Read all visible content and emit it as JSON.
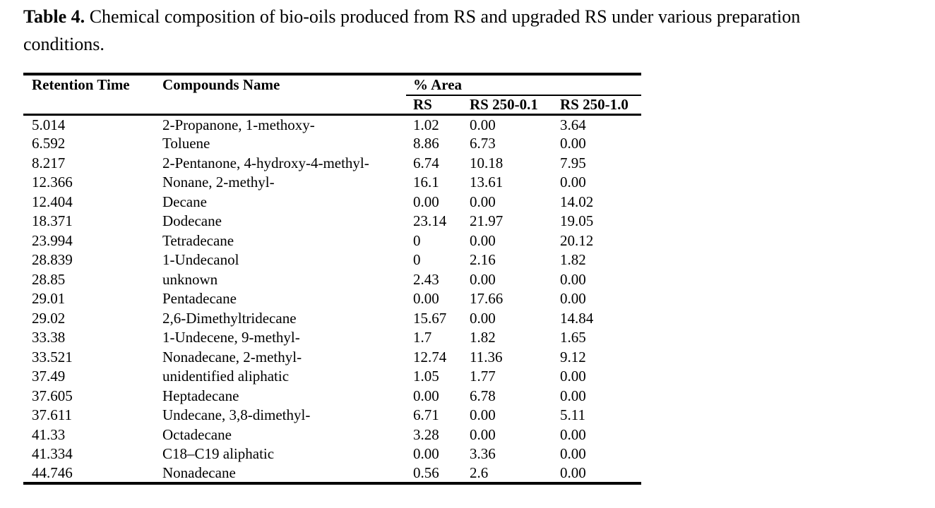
{
  "page": {
    "background_color": "#ffffff",
    "text_color": "#000000"
  },
  "caption": {
    "label": "Table 4.",
    "line1_rest": " Chemical composition of bio-oils produced from RS and upgraded RS under various preparation",
    "line2": "conditions."
  },
  "table": {
    "columns": {
      "retention_time": "Retention Time",
      "compounds_name": "Compounds Name",
      "area_group": "% Area",
      "sub_columns": [
        "RS",
        "RS 250-0.1",
        "RS 250-1.0"
      ]
    },
    "rows": [
      {
        "retention_time": "5.014",
        "compound": "2-Propanone, 1-methoxy-",
        "values": [
          "1.02",
          "0.00",
          "3.64"
        ]
      },
      {
        "retention_time": "6.592",
        "compound": "Toluene",
        "values": [
          "8.86",
          "6.73",
          "0.00"
        ]
      },
      {
        "retention_time": "8.217",
        "compound": "2-Pentanone, 4-hydroxy-4-methyl-",
        "values": [
          "6.74",
          "10.18",
          "7.95"
        ]
      },
      {
        "retention_time": "12.366",
        "compound": "Nonane, 2-methyl-",
        "values": [
          "16.1",
          "13.61",
          "0.00"
        ]
      },
      {
        "retention_time": "12.404",
        "compound": "Decane",
        "values": [
          "0.00",
          "0.00",
          "14.02"
        ]
      },
      {
        "retention_time": "18.371",
        "compound": "Dodecane",
        "values": [
          "23.14",
          "21.97",
          "19.05"
        ]
      },
      {
        "retention_time": "23.994",
        "compound": "Tetradecane",
        "values": [
          "0",
          "0.00",
          "20.12"
        ]
      },
      {
        "retention_time": "28.839",
        "compound": "1-Undecanol",
        "values": [
          "0",
          "2.16",
          "1.82"
        ]
      },
      {
        "retention_time": "28.85",
        "compound": "unknown",
        "values": [
          "2.43",
          "0.00",
          "0.00"
        ]
      },
      {
        "retention_time": "29.01",
        "compound": "Pentadecane",
        "values": [
          "0.00",
          "17.66",
          "0.00"
        ]
      },
      {
        "retention_time": "29.02",
        "compound": "2,6-Dimethyltridecane",
        "values": [
          "15.67",
          "0.00",
          "14.84"
        ]
      },
      {
        "retention_time": "33.38",
        "compound": "1-Undecene, 9-methyl-",
        "values": [
          "1.7",
          "1.82",
          "1.65"
        ]
      },
      {
        "retention_time": "33.521",
        "compound": "Nonadecane, 2-methyl-",
        "values": [
          "12.74",
          "11.36",
          "9.12"
        ]
      },
      {
        "retention_time": "37.49",
        "compound": "unidentified aliphatic",
        "values": [
          "1.05",
          "1.77",
          "0.00"
        ]
      },
      {
        "retention_time": "37.605",
        "compound": "Heptadecane",
        "values": [
          "0.00",
          "6.78",
          "0.00"
        ]
      },
      {
        "retention_time": "37.611",
        "compound": "Undecane, 3,8-dimethyl-",
        "values": [
          "6.71",
          "0.00",
          "5.11"
        ]
      },
      {
        "retention_time": "41.33",
        "compound": "Octadecane",
        "values": [
          "3.28",
          "0.00",
          "0.00"
        ]
      },
      {
        "retention_time": "41.334",
        "compound": "C18–C19 aliphatic",
        "values": [
          "0.00",
          "3.36",
          "0.00"
        ]
      },
      {
        "retention_time": "44.746",
        "compound": "Nonadecane",
        "values": [
          "0.56",
          "2.6",
          "0.00"
        ]
      }
    ]
  }
}
